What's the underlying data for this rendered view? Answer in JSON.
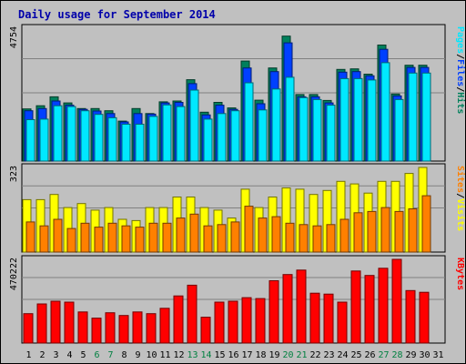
{
  "chart_data": {
    "type": "bar",
    "title": "Daily usage for September 2014",
    "days": [
      "1",
      "2",
      "3",
      "4",
      "5",
      "6",
      "7",
      "8",
      "9",
      "10",
      "11",
      "12",
      "13",
      "14",
      "15",
      "16",
      "17",
      "18",
      "19",
      "20",
      "21",
      "22",
      "23",
      "24",
      "25",
      "26",
      "27",
      "28",
      "29",
      "30",
      "31"
    ],
    "weekend_days": [
      "6",
      "7",
      "13",
      "14",
      "20",
      "21",
      "27",
      "28"
    ],
    "panels": [
      {
        "id": "hits",
        "ymax": 4754,
        "ymax_label": "4754",
        "series": [
          {
            "name": "Hits",
            "color": "#00805c",
            "values": [
              1865,
              1980,
              2300,
              2080,
              1880,
              1880,
              1800,
              1430,
              1880,
              1700,
              2120,
              2150,
              2910,
              1750,
              2100,
              1900,
              3580,
              2180,
              3330,
              4470,
              2380,
              2380,
              2170,
              3280,
              3300,
              3110,
              4150,
              2400,
              3430,
              3430,
              0
            ]
          },
          {
            "name": "Files",
            "color": "#0040ff",
            "values": [
              1800,
              1880,
              2150,
              2000,
              1850,
              1790,
              1700,
              1400,
              1700,
              1680,
              2080,
              2100,
              2770,
              1650,
              2000,
              1850,
              3330,
              2050,
              3200,
              4230,
              2300,
              2300,
              2080,
              3180,
              3200,
              3050,
              4000,
              2330,
              3350,
              3350,
              0
            ]
          },
          {
            "name": "Pages",
            "color": "#00e8ff",
            "values": [
              1480,
              1500,
              1980,
              1950,
              1800,
              1670,
              1550,
              1320,
              1320,
              1600,
              2010,
              1950,
              2540,
              1500,
              1700,
              1800,
              2800,
              1830,
              2580,
              3000,
              2270,
              2200,
              2000,
              2950,
              2950,
              2900,
              3520,
              2200,
              3150,
              3150,
              0
            ]
          }
        ],
        "right_label": [
          "Pages",
          "Files",
          "Hits"
        ]
      },
      {
        "id": "visits",
        "ymax": 323,
        "ymax_label": "323",
        "series": [
          {
            "name": "Visits",
            "color": "#ffff00",
            "values": [
              200,
              200,
              220,
              170,
              185,
              160,
              170,
              125,
              120,
              170,
              170,
              210,
              210,
              170,
              160,
              130,
              240,
              170,
              210,
              245,
              240,
              220,
              235,
              270,
              260,
              225,
              270,
              270,
              300,
              323,
              0
            ]
          },
          {
            "name": "Sites",
            "color": "#ff8000",
            "values": [
              115,
              100,
              125,
              90,
              110,
              95,
              110,
              100,
              95,
              110,
              110,
              130,
              145,
              100,
              105,
              115,
              175,
              130,
              135,
              110,
              105,
              100,
              105,
              125,
              150,
              155,
              170,
              155,
              165,
              215,
              0
            ]
          }
        ],
        "right_label": [
          "Sites",
          "Visits"
        ]
      },
      {
        "id": "kbytes",
        "ymax": 470222,
        "ymax_label": "470222",
        "series": [
          {
            "name": "KBytes",
            "color": "#ff0000",
            "values": [
              165000,
              220000,
              235000,
              230000,
              175000,
              140000,
              170000,
              155000,
              175000,
              165000,
              195000,
              265000,
              325000,
              145000,
              230000,
              235000,
              255000,
              250000,
              350000,
              385000,
              410000,
              280000,
              275000,
              230000,
              405000,
              380000,
              420000,
              470222,
              295000,
              285000,
              0
            ]
          }
        ],
        "right_label": [
          "KBytes"
        ]
      }
    ]
  }
}
